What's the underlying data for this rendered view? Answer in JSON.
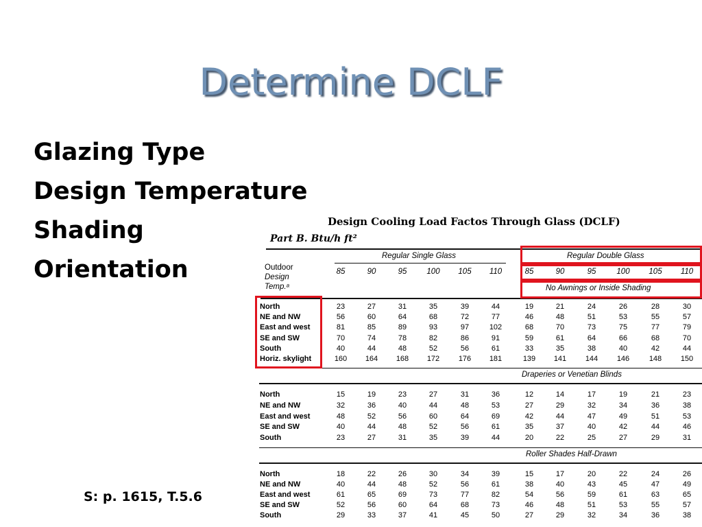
{
  "slide": {
    "title": "Determine DCLF",
    "bullets": [
      "Glazing Type",
      "Design Temperature",
      "Shading",
      "Orientation"
    ],
    "source": "S: p. 1615, T.5.6"
  },
  "table": {
    "title": "Design Cooling Load Factos Through Glass (DCLF)",
    "part": "Part B. Btu/h ft²",
    "header_outdoor": [
      "Outdoor",
      "Design",
      "Temp.ᵃ"
    ],
    "group_single": "Regular Single Glass",
    "group_double": "Regular Double Glass",
    "temps": [
      "85",
      "90",
      "95",
      "100",
      "105",
      "110",
      "85",
      "90",
      "95",
      "100",
      "105",
      "110"
    ],
    "sections": [
      {
        "title": "No Awnings or Inside Shading",
        "rows": [
          {
            "label": "North",
            "values": [
              "23",
              "27",
              "31",
              "35",
              "39",
              "44",
              "19",
              "21",
              "24",
              "26",
              "28",
              "30"
            ]
          },
          {
            "label": "NE and NW",
            "values": [
              "56",
              "60",
              "64",
              "68",
              "72",
              "77",
              "46",
              "48",
              "51",
              "53",
              "55",
              "57"
            ]
          },
          {
            "label": "East and west",
            "values": [
              "81",
              "85",
              "89",
              "93",
              "97",
              "102",
              "68",
              "70",
              "73",
              "75",
              "77",
              "79"
            ]
          },
          {
            "label": "SE and SW",
            "values": [
              "70",
              "74",
              "78",
              "82",
              "86",
              "91",
              "59",
              "61",
              "64",
              "66",
              "68",
              "70"
            ]
          },
          {
            "label": "South",
            "values": [
              "40",
              "44",
              "48",
              "52",
              "56",
              "61",
              "33",
              "35",
              "38",
              "40",
              "42",
              "44"
            ]
          },
          {
            "label": "Horiz. skylight",
            "values": [
              "160",
              "164",
              "168",
              "172",
              "176",
              "181",
              "139",
              "141",
              "144",
              "146",
              "148",
              "150"
            ]
          }
        ]
      },
      {
        "title": "Draperies or Venetian Blinds",
        "rows": [
          {
            "label": "North",
            "values": [
              "15",
              "19",
              "23",
              "27",
              "31",
              "36",
              "12",
              "14",
              "17",
              "19",
              "21",
              "23"
            ]
          },
          {
            "label": "NE and NW",
            "values": [
              "32",
              "36",
              "40",
              "44",
              "48",
              "53",
              "27",
              "29",
              "32",
              "34",
              "36",
              "38"
            ]
          },
          {
            "label": "East and west",
            "values": [
              "48",
              "52",
              "56",
              "60",
              "64",
              "69",
              "42",
              "44",
              "47",
              "49",
              "51",
              "53"
            ]
          },
          {
            "label": "SE and SW",
            "values": [
              "40",
              "44",
              "48",
              "52",
              "56",
              "61",
              "35",
              "37",
              "40",
              "42",
              "44",
              "46"
            ]
          },
          {
            "label": "South",
            "values": [
              "23",
              "27",
              "31",
              "35",
              "39",
              "44",
              "20",
              "22",
              "25",
              "27",
              "29",
              "31"
            ]
          }
        ]
      },
      {
        "title": "Roller Shades Half-Drawn",
        "rows": [
          {
            "label": "North",
            "values": [
              "18",
              "22",
              "26",
              "30",
              "34",
              "39",
              "15",
              "17",
              "20",
              "22",
              "24",
              "26"
            ]
          },
          {
            "label": "NE and NW",
            "values": [
              "40",
              "44",
              "48",
              "52",
              "56",
              "61",
              "38",
              "40",
              "43",
              "45",
              "47",
              "49"
            ]
          },
          {
            "label": "East and west",
            "values": [
              "61",
              "65",
              "69",
              "73",
              "77",
              "82",
              "54",
              "56",
              "59",
              "61",
              "63",
              "65"
            ]
          },
          {
            "label": "SE and SW",
            "values": [
              "52",
              "56",
              "60",
              "64",
              "68",
              "73",
              "46",
              "48",
              "51",
              "53",
              "55",
              "57"
            ]
          },
          {
            "label": "South",
            "values": [
              "29",
              "33",
              "37",
              "41",
              "45",
              "50",
              "27",
              "29",
              "32",
              "34",
              "36",
              "38"
            ]
          }
        ]
      }
    ]
  },
  "colors": {
    "title": "#6f90b4",
    "highlight": "#e0141e"
  }
}
